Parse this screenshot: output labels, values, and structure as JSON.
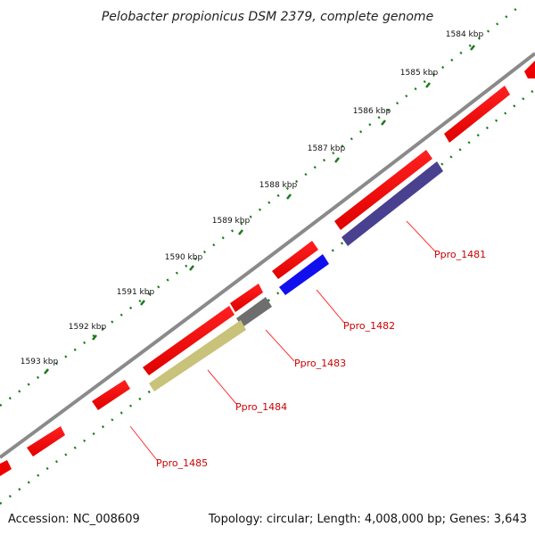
{
  "title": "Pelobacter propionicus DSM 2379, complete genome",
  "footer": {
    "accession": "Accession: NC_008609",
    "summary": "Topology: circular; Length: 4,008,000 bp; Genes: 3,643"
  },
  "tick_labels": [
    "1584 kbp",
    "1585 kbp",
    "1586 kbp",
    "1587 kbp",
    "1588 kbp",
    "1589 kbp",
    "1590 kbp",
    "1591 kbp",
    "1592 kbp",
    "1593 kbp"
  ],
  "gene_labels": [
    "Ppro_1481",
    "Ppro_1482",
    "Ppro_1483",
    "Ppro_1484",
    "Ppro_1485"
  ],
  "colors": {
    "backbone": "#8a8a8a",
    "tick_dots": "#1a7a1a",
    "cds": "#ff0000",
    "feature_1481": "#4a4090",
    "feature_1482": "#1010ee",
    "feature_1483": "#6e6e6e",
    "feature_1484": "#c8c27a",
    "label_text": "#cc0000"
  }
}
